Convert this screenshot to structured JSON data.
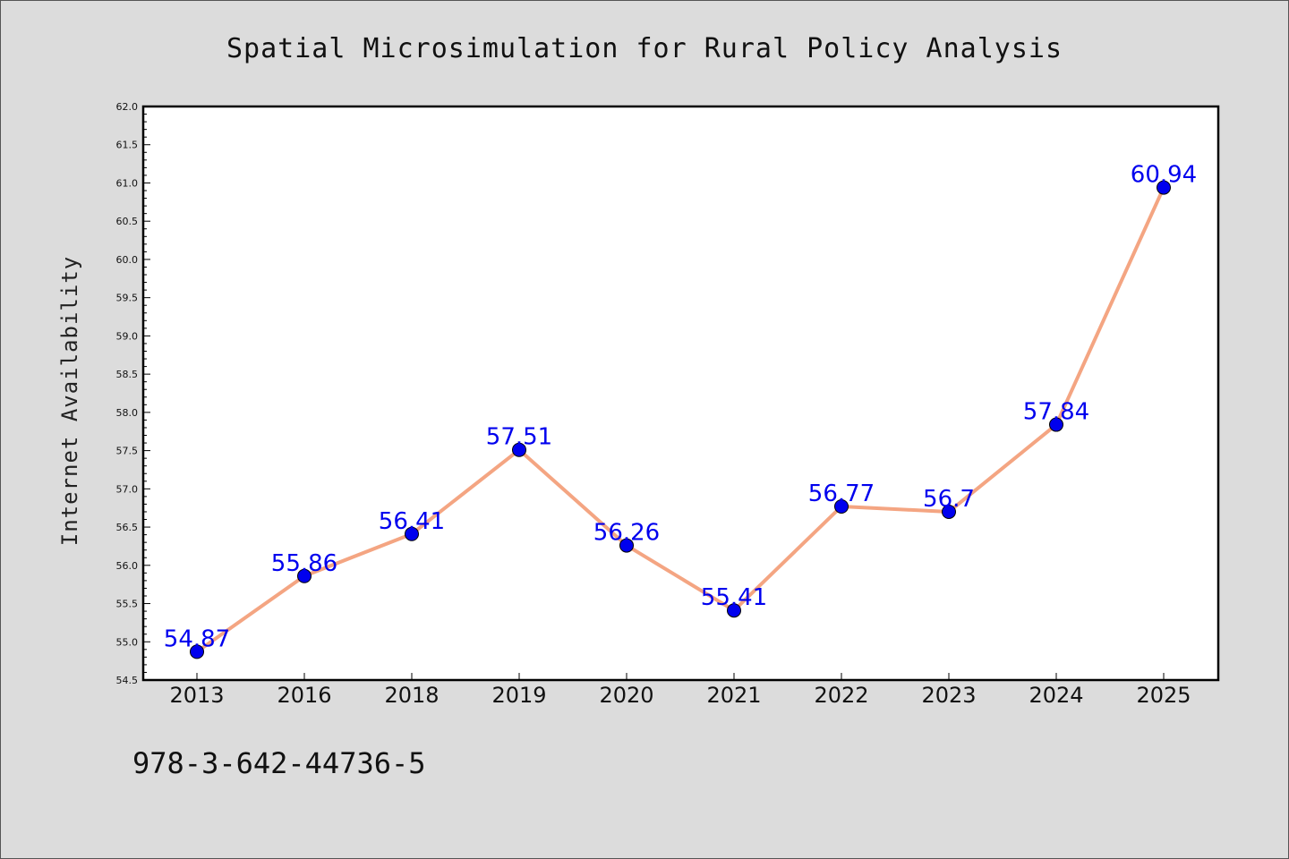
{
  "chart_data": {
    "type": "line",
    "title": "Spatial Microsimulation for Rural Policy Analysis",
    "xlabel": "",
    "ylabel": "Internet Availability",
    "categories": [
      "2013",
      "2016",
      "2018",
      "2019",
      "2020",
      "2021",
      "2022",
      "2023",
      "2024",
      "2025"
    ],
    "values": [
      54.87,
      55.86,
      56.41,
      57.51,
      56.26,
      55.41,
      56.77,
      56.7,
      57.84,
      60.94
    ],
    "data_labels": [
      "54.87",
      "55.86",
      "56.41",
      "57.51",
      "56.26",
      "55.41",
      "56.77",
      "56.7",
      "57.84",
      "60.94"
    ],
    "ylim": [
      54.5,
      62.0
    ],
    "yticks": [
      "54.5",
      "55.0",
      "55.5",
      "56.0",
      "56.5",
      "57.0",
      "57.5",
      "58.0",
      "58.5",
      "59.0",
      "59.5",
      "60.0",
      "60.5",
      "61.0",
      "61.5",
      "62.0"
    ],
    "grid": false,
    "legend": "none",
    "colors": {
      "line": "#f4a582",
      "marker": "#0000ee",
      "label": "#0000ee",
      "background": "#dcdcdc",
      "plot_background": "#ffffff"
    }
  },
  "annotation": {
    "text": "978-3-642-44736-5"
  }
}
